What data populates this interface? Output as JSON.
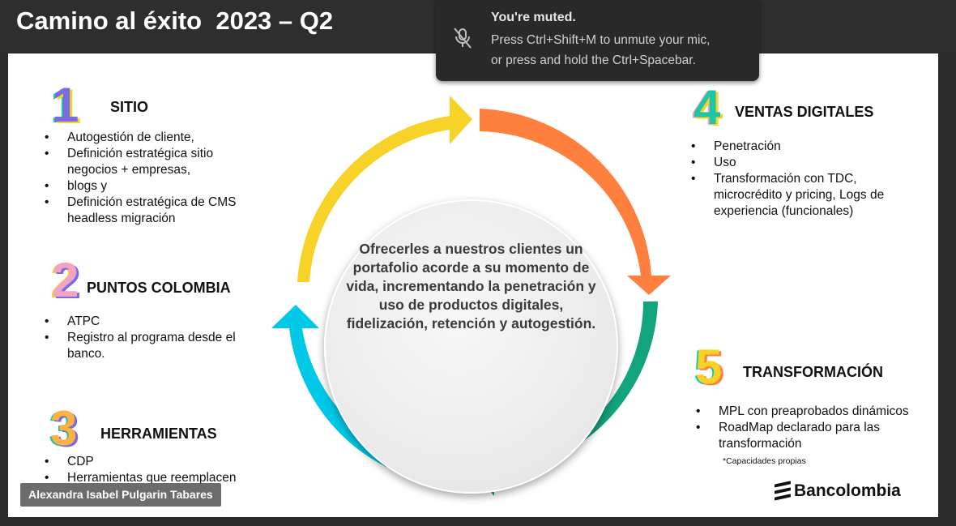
{
  "title": "Camino al éxito  2023 – Q2",
  "toast": {
    "title": "You're muted.",
    "line1": "Press Ctrl+Shift+M to unmute your mic,",
    "line2": "or press and hold the Ctrl+Spacebar.",
    "icon": "mic-off-icon"
  },
  "sections": {
    "s1": {
      "num": "1",
      "heading": "SITIO",
      "items": [
        "Autogestión de cliente,",
        "Definición estratégica sitio negocios + empresas,",
        "blogs y",
        "Definición estratégica de CMS headless migración"
      ]
    },
    "s2": {
      "num": "2",
      "heading": "PUNTOS COLOMBIA",
      "items": [
        "ATPC",
        "Registro al programa desde el banco."
      ]
    },
    "s3": {
      "num": "3",
      "heading": "HERRAMIENTAS",
      "items": [
        "CDP",
        "Herramientas que reemplacen"
      ]
    },
    "s4": {
      "num": "4",
      "heading": "VENTAS DIGITALES",
      "items": [
        "Penetración",
        "Uso",
        "Transformación con TDC, microcrédito y pricing, Logs de experiencia (funcionales)"
      ]
    },
    "s5": {
      "num": "5",
      "heading": "TRANSFORMACIÓN",
      "items": [
        "MPL con preaprobados dinámicos",
        "RoadMap declarado para las transformación"
      ],
      "note": "*Capacidades propias"
    }
  },
  "center_text": "Ofrecerles a nuestros clientes un portafolio acorde a su momento de vida, incrementando la penetración  y  uso de productos digitales, fidelización, retención  y autogestión.",
  "participant_name": "Alexandra Isabel Pulgarin Tabares",
  "logo_text": "Bancolombia",
  "colors": {
    "yellow": "#F7D229",
    "orange": "#FF7F3F",
    "green": "#12A37F",
    "cyan": "#00C8E6"
  }
}
